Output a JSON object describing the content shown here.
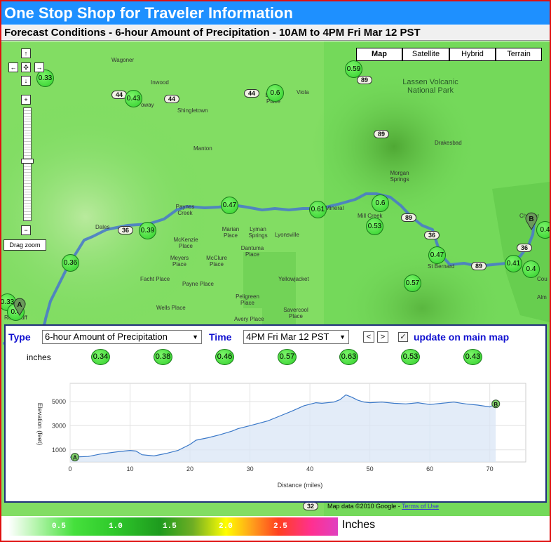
{
  "header": {
    "title": "One Stop Shop for Traveler Information"
  },
  "subtitle": "Forecast Conditions - 6-hour Amount of Precipitation - 10AM to 4PM Fri Mar 12 PST",
  "map": {
    "map_types": [
      {
        "label": "Map",
        "active": true
      },
      {
        "label": "Satellite",
        "active": false
      },
      {
        "label": "Hybrid",
        "active": false
      },
      {
        "label": "Terrain",
        "active": false
      }
    ],
    "drag_zoom_label": "Drag zoom",
    "places": [
      "Wagoner",
      "Inwood",
      "Shingletown",
      "Viola",
      "Manton",
      "Drakesbad",
      "Paynes Creek",
      "Dales",
      "Marian Place",
      "Lyman Springs",
      "Lyonsville",
      "Dantuma Place",
      "McKenzie Place",
      "Meyers Place",
      "McClure Place",
      "Facht Place",
      "Payne Place",
      "Yellowjacket",
      "Wells Place",
      "Peligreen Place",
      "Savercool Place",
      "Avery Place",
      "Mill Creek",
      "Morgan Springs",
      "St Bernard",
      "Chester",
      "Red Bluff",
      "Mineral",
      "Lassen Volcanic National Park",
      "Alm",
      "Cou",
      "Brown Place",
      "oway"
    ],
    "route_labels": [
      "44",
      "44",
      "44",
      "89",
      "89",
      "36",
      "89",
      "36",
      "89",
      "36",
      "32"
    ],
    "bubbles": [
      "0.33",
      "0.43",
      "0.6",
      "0.59",
      "0.47",
      "0.61",
      "0.6",
      "0.53",
      "0.39",
      "0.36",
      "0.47",
      "0.41",
      "0.4",
      "0.57",
      "0.33",
      "0.4",
      "0.4"
    ],
    "markers": {
      "start": "A",
      "end": "B"
    },
    "attribution": "Map data ©2010 Google -",
    "terms_link": "Terms of Use"
  },
  "panel": {
    "type_label": "Type",
    "type_value": "6-hour Amount of Precipitation",
    "time_label": "Time",
    "time_value": "4PM Fri Mar 12 PST",
    "prev_label": "<",
    "next_label": ">",
    "update_label": "update on main map",
    "update_checked": true,
    "units_label": "inches",
    "point_values": [
      "0.34",
      "0.38",
      "0.46",
      "0.57",
      "0.63",
      "0.53",
      "0.43"
    ]
  },
  "chart_data": {
    "type": "area",
    "xlabel": "Distance (miles)",
    "ylabel": "Elevation (feet)",
    "xlim": [
      0,
      76
    ],
    "ylim": [
      0,
      6500
    ],
    "x_ticks": [
      0,
      10,
      20,
      30,
      40,
      50,
      60,
      70
    ],
    "y_ticks": [
      1000,
      3000,
      5000
    ],
    "grid": true,
    "series": [
      {
        "x": [
          0,
          3,
          5,
          8,
          10,
          11,
          12,
          14,
          16,
          18,
          20,
          21,
          23,
          25,
          27,
          28,
          30,
          33,
          35,
          37,
          39,
          41,
          42,
          44,
          45,
          46,
          47,
          48,
          49,
          50,
          52,
          54,
          56,
          58,
          60,
          62,
          64,
          66,
          68,
          70,
          71
        ],
        "y": [
          400,
          450,
          650,
          850,
          950,
          900,
          600,
          500,
          700,
          950,
          1450,
          1800,
          2000,
          2250,
          2550,
          2750,
          3000,
          3400,
          3800,
          4200,
          4650,
          4900,
          4850,
          4950,
          5150,
          5550,
          5350,
          5100,
          4950,
          4900,
          4950,
          4850,
          4800,
          4900,
          4750,
          4850,
          4950,
          4800,
          4700,
          4550,
          4800
        ]
      }
    ],
    "markers": [
      {
        "label": "A",
        "x": 0.8,
        "y": 400
      },
      {
        "label": "B",
        "x": 71,
        "y": 4800
      }
    ]
  },
  "legend": {
    "ticks": [
      "0.5",
      "1.0",
      "1.5",
      "2.0",
      "2.5"
    ],
    "unit": "Inches"
  }
}
